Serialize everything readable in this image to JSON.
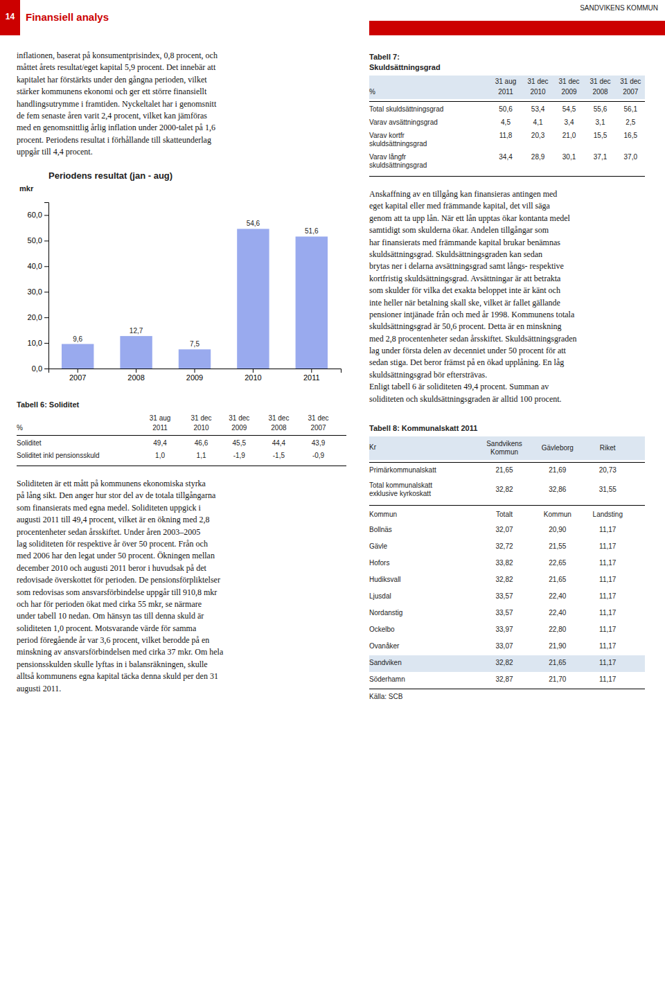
{
  "page_number": "14",
  "header_title": "Finansiell analys",
  "header_right": "SANDVIKENS KOMMUN",
  "header_color": "#cc0000",
  "highlight_color": "#dce6f1",
  "left_text": "inflationen, baserat på konsumentprisindex, 0,8 procent, och\nmåttet årets resultat/eget kapital 5,9 procent. Det innebär att\nkapitalet har förstärkts under den gångna perioden, vilket\nstärker kommunens ekonomi och ger ett större finansiellt\nhandlingsutrymme i framtiden. Nyckeltalet har i genomsnitt\nde fem senaste åren varit 2,4 procent, vilket kan jämföras\nmed en genomsnittlig årlig inflation under 2000-talet på 1,6\nprocent. Periodens resultat i förhållande till skatteunderlag\nuppgår till 4,4 procent.",
  "chart_data": {
    "type": "bar",
    "title": "Periodens resultat (jan - aug)",
    "ylabel": "mkr",
    "categories": [
      "2007",
      "2008",
      "2009",
      "2010",
      "2011"
    ],
    "values": [
      9.6,
      12.7,
      7.5,
      54.6,
      51.6
    ],
    "value_labels": [
      "9,6",
      "12,7",
      "7,5",
      "54,6",
      "51,6"
    ],
    "data_labels": true,
    "color": "#99aaee",
    "ylim": [
      0,
      65
    ],
    "yticks": [
      {
        "value": 0,
        "label": "0,0"
      },
      {
        "value": 10,
        "label": "10,0"
      },
      {
        "value": 20,
        "label": "20,0"
      },
      {
        "value": 30,
        "label": "30,0"
      },
      {
        "value": 40,
        "label": "40,0"
      },
      {
        "value": 50,
        "label": "50,0"
      },
      {
        "value": 60,
        "label": "60,0"
      }
    ],
    "grid": false
  },
  "table6": {
    "title": "Tabell 6: Soliditet",
    "columns": [
      "31 aug",
      "31 dec",
      "31 dec",
      "31 dec",
      "31 dec"
    ],
    "years": [
      "2011",
      "2010",
      "2009",
      "2008",
      "2007"
    ],
    "unit": "%",
    "rows": [
      {
        "label": "Soliditet",
        "cells": [
          "49,4",
          "46,6",
          "45,5",
          "44,4",
          "43,9"
        ]
      },
      {
        "label": "Soliditet inkl pensionsskuld",
        "cells": [
          "1,0",
          "1,1",
          "-1,9",
          "-1,5",
          "-0,9"
        ]
      }
    ]
  },
  "left_bottom_text": "Soliditeten är ett mått på kommunens ekonomiska styrka\npå lång sikt. Den anger hur stor del av de totala tillgångarna\nsom finansierats med egna medel. Soliditeten uppgick i\naugusti 2011 till 49,4 procent, vilket är en ökning med 2,8\nprocentenheter sedan årsskiftet. Under åren 2003–2005\nlag soliditeten för respektive år över 50 procent. Från och\nmed 2006 har den legat under 50 procent. Ökningen mellan\ndecember 2010 och augusti 2011 beror i huvudsak på det\nredovisade överskottet för perioden. De pensionsförpliktelser\nsom redovisas som ansvarsförbindelse uppgår till 910,8 mkr\noch har för perioden ökat med cirka 55 mkr, se närmare\nunder tabell 10 nedan. Om hänsyn tas till denna skuld är\nsoliditeten 1,0 procent. Motsvarande värde för samma\nperiod föregående år var 3,6 procent, vilket berodde på en\nminskning av ansvarsförbindelsen med cirka 37 mkr. Om hela\npensionsskulden skulle lyftas in i balansräkningen, skulle\nalltså kommunens egna kapital täcka denna skuld per den 31\naugusti 2011.",
  "table7": {
    "title": "Tabell 7:",
    "subtitle": "Skuldsättningsgrad",
    "columns": [
      "31 aug",
      "31 dec",
      "31 dec",
      "31 dec",
      "31 dec"
    ],
    "years": [
      "2011",
      "2010",
      "2009",
      "2008",
      "2007"
    ],
    "unit": "%",
    "rows": [
      {
        "label": "Total skuldsättningsgrad",
        "cells": [
          "50,6",
          "53,4",
          "54,5",
          "55,6",
          "56,1"
        ]
      },
      {
        "label": "Varav avsättningsgrad",
        "cells": [
          "4,5",
          "4,1",
          "3,4",
          "3,1",
          "2,5"
        ]
      },
      {
        "label": "Varav kortfr\nskuldsättningsgrad",
        "cells": [
          "11,8",
          "20,3",
          "21,0",
          "15,5",
          "16,5"
        ]
      },
      {
        "label": "Varav långfr\nskuldsättningsgrad",
        "cells": [
          "34,4",
          "28,9",
          "30,1",
          "37,1",
          "37,0"
        ]
      }
    ]
  },
  "right_text": "Anskaffning av en tillgång kan finansieras antingen med\neget kapital eller med främmande kapital, det vill säga\ngenom att ta upp lån. När ett lån upptas ökar kontanta medel\nsamtidigt som skulderna ökar. Andelen tillgångar som\nhar finansierats med främmande kapital brukar benämnas\nskuldsättningsgrad. Skuldsättningsgraden kan sedan\nbrytas ner i delarna avsättningsgrad samt långs- respektive\nkortfristig skuldsättningsgrad. Avsättningar är att betrakta\nsom skulder för vilka det exakta beloppet inte är känt och\ninte heller när betalning skall ske, vilket är fallet gällande\npensioner intjänade från och med år 1998. Kommunens totala\nskuldsättningsgrad är 50,6 procent. Detta är en minskning\nmed 2,8 procentenheter sedan årsskiftet. Skuldsättningsgraden\nlag under första delen av decenniet under 50 procent för att\nsedan stiga. Det beror främst på en ökad upplåning. En låg\nskuldsättningsgrad bör eftersträvas.\nEnligt tabell 6 är soliditeten 49,4 procent. Summan av\nsoliditeten och skuldsättningsgraden är alltid 100 procent.",
  "table8": {
    "title": "Tabell 8: Kommunalskatt 2011",
    "unit_label": "Kr",
    "columns": [
      "Sandvikens\nKommun",
      "Gävleborg",
      "Riket"
    ],
    "rows": [
      {
        "label": "Primärkommunalskatt",
        "cells": [
          "21,65",
          "21,69",
          "20,73"
        ]
      },
      {
        "label": "Total kommunalskatt\nexklusive kyrkoskatt",
        "cells": [
          "32,82",
          "32,86",
          "31,55"
        ]
      }
    ],
    "list_header": [
      "Kommun",
      "Totalt",
      "Kommun",
      "Landsting"
    ],
    "list": [
      {
        "name": "Bollnäs",
        "cells": [
          "32,07",
          "20,90",
          "11,17"
        ]
      },
      {
        "name": "Gävle",
        "cells": [
          "32,72",
          "21,55",
          "11,17"
        ]
      },
      {
        "name": "Hofors",
        "cells": [
          "33,82",
          "22,65",
          "11,17"
        ]
      },
      {
        "name": "Hudiksvall",
        "cells": [
          "32,82",
          "21,65",
          "11,17"
        ]
      },
      {
        "name": "Ljusdal",
        "cells": [
          "33,57",
          "22,40",
          "11,17"
        ]
      },
      {
        "name": "Nordanstig",
        "cells": [
          "33,57",
          "22,40",
          "11,17"
        ]
      },
      {
        "name": "Ockelbo",
        "cells": [
          "33,97",
          "22,80",
          "11,17"
        ]
      },
      {
        "name": "Ovanåker",
        "cells": [
          "33,07",
          "21,90",
          "11,17"
        ]
      },
      {
        "name": "Sandviken",
        "cells": [
          "32,82",
          "21,65",
          "11,17"
        ],
        "highlight": true
      },
      {
        "name": "Söderhamn",
        "cells": [
          "32,87",
          "21,70",
          "11,17"
        ]
      }
    ],
    "footer": "Källa: SCB"
  }
}
